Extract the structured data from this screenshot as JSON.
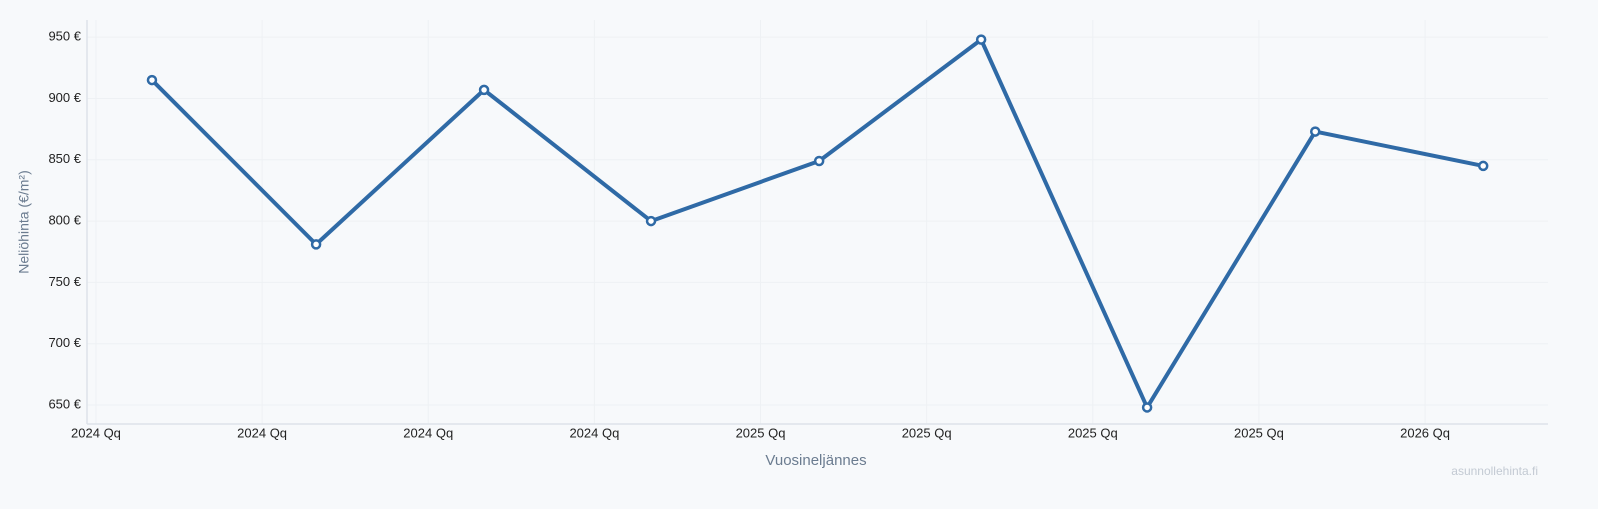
{
  "chart_data": {
    "type": "line",
    "x_label": "Vuosineljännes",
    "y_label": "Neliöhinta (€/m²)",
    "watermark": "asunnollehinta.fi",
    "x": [
      0.337,
      1.325,
      2.336,
      3.341,
      4.353,
      5.328,
      6.327,
      7.339,
      8.35
    ],
    "series": [
      {
        "name": "Neliöhinta",
        "color": "#2f6aa6",
        "values": [
          915,
          781,
          907,
          800,
          849,
          948,
          648,
          873,
          845
        ]
      }
    ],
    "xlim": [
      -0.054,
      8.74
    ],
    "xticks": [
      {
        "value": 0,
        "label": "2024 Qq"
      },
      {
        "value": 1,
        "label": "2024 Qq"
      },
      {
        "value": 2,
        "label": "2024 Qq"
      },
      {
        "value": 3,
        "label": "2024 Qq"
      },
      {
        "value": 4,
        "label": "2025 Qq"
      },
      {
        "value": 5,
        "label": "2025 Qq"
      },
      {
        "value": 6,
        "label": "2025 Qq"
      },
      {
        "value": 7,
        "label": "2025 Qq"
      },
      {
        "value": 8,
        "label": "2026 Qq"
      }
    ],
    "ylim": [
      634.5,
      964
    ],
    "yticks": [
      {
        "value": 650,
        "label": "650 €"
      },
      {
        "value": 700,
        "label": "700 €"
      },
      {
        "value": 750,
        "label": "750 €"
      },
      {
        "value": 800,
        "label": "800 €"
      },
      {
        "value": 850,
        "label": "850 €"
      },
      {
        "value": 900,
        "label": "900 €"
      },
      {
        "value": 950,
        "label": "950 €"
      }
    ],
    "grid": true
  }
}
